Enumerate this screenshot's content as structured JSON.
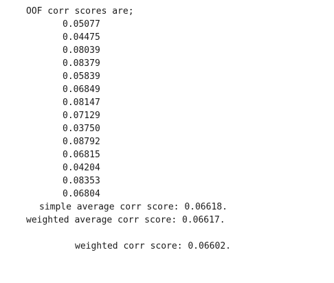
{
  "output": {
    "header": "OOF corr scores are;",
    "scores": [
      "0.05077",
      "0.04475",
      "0.08039",
      "0.08379",
      "0.05839",
      "0.06849",
      "0.08147",
      "0.07129",
      "0.03750",
      "0.08792",
      "0.06815",
      "0.04204",
      "0.08353",
      "0.06804"
    ],
    "simple_average": "simple average corr score: 0.06618.",
    "weighted_average": "weighted average corr score: 0.06617.",
    "weighted_corr": "weighted corr score: 0.06602."
  }
}
